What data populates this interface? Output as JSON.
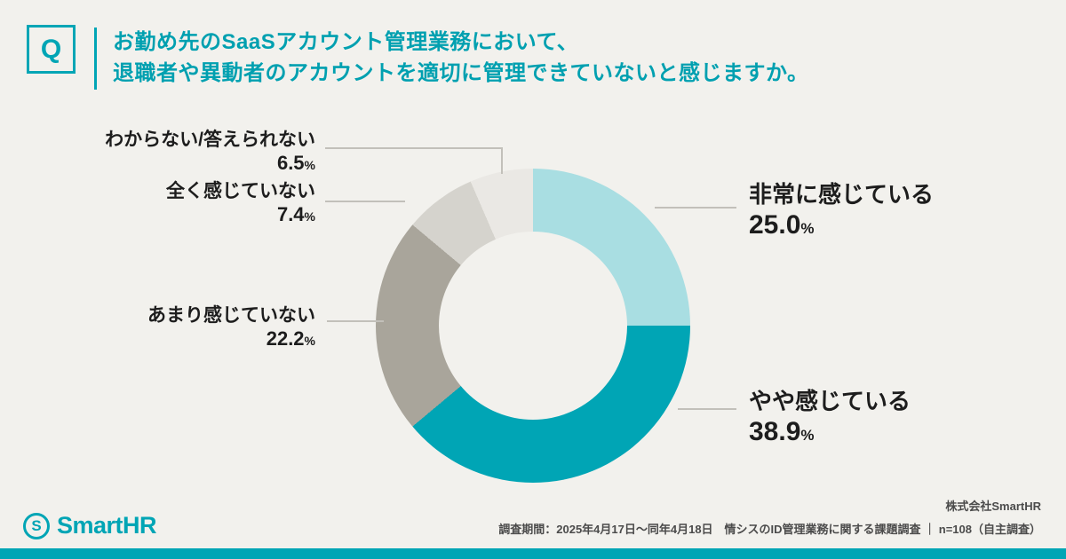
{
  "page": {
    "background": "#f2f1ed",
    "accent_color": "#00a5b5"
  },
  "question": {
    "badge": "Q",
    "line1": "お勤め先のSaaSアカウント管理業務において、",
    "line2": "退職者や異動者のアカウントを適切に管理できていないと感じますか。"
  },
  "chart_data": {
    "type": "pie",
    "donut": true,
    "title": "お勤め先のSaaSアカウント管理業務において、退職者や異動者のアカウントを適切に管理できていないと感じますか。",
    "unit": "%",
    "start_angle_deg": 0,
    "direction": "clockwise",
    "segments": [
      {
        "label": "非常に感じている",
        "value": 25.0,
        "display": "25.0",
        "color": "#a9dee2",
        "side": "right"
      },
      {
        "label": "やや感じている",
        "value": 38.9,
        "display": "38.9",
        "color": "#00a5b5",
        "side": "right"
      },
      {
        "label": "あまり感じていない",
        "value": 22.2,
        "display": "22.2",
        "color": "#a9a59b",
        "side": "left"
      },
      {
        "label": "全く感じていない",
        "value": 7.4,
        "display": "7.4",
        "color": "#d5d3cd",
        "side": "left"
      },
      {
        "label": "わからない/答えられない",
        "value": 6.5,
        "display": "6.5",
        "color": "#eae8e4",
        "side": "left"
      }
    ]
  },
  "footer": {
    "logo": {
      "icon": "smarthr-mark",
      "text": "SmartHR"
    },
    "company": "株式会社SmartHR",
    "note": "調査期間：2025年4月17日～同年4月18日　情シスのID管理業務に関する課題調査 ｜ n=108（自主調査）"
  }
}
